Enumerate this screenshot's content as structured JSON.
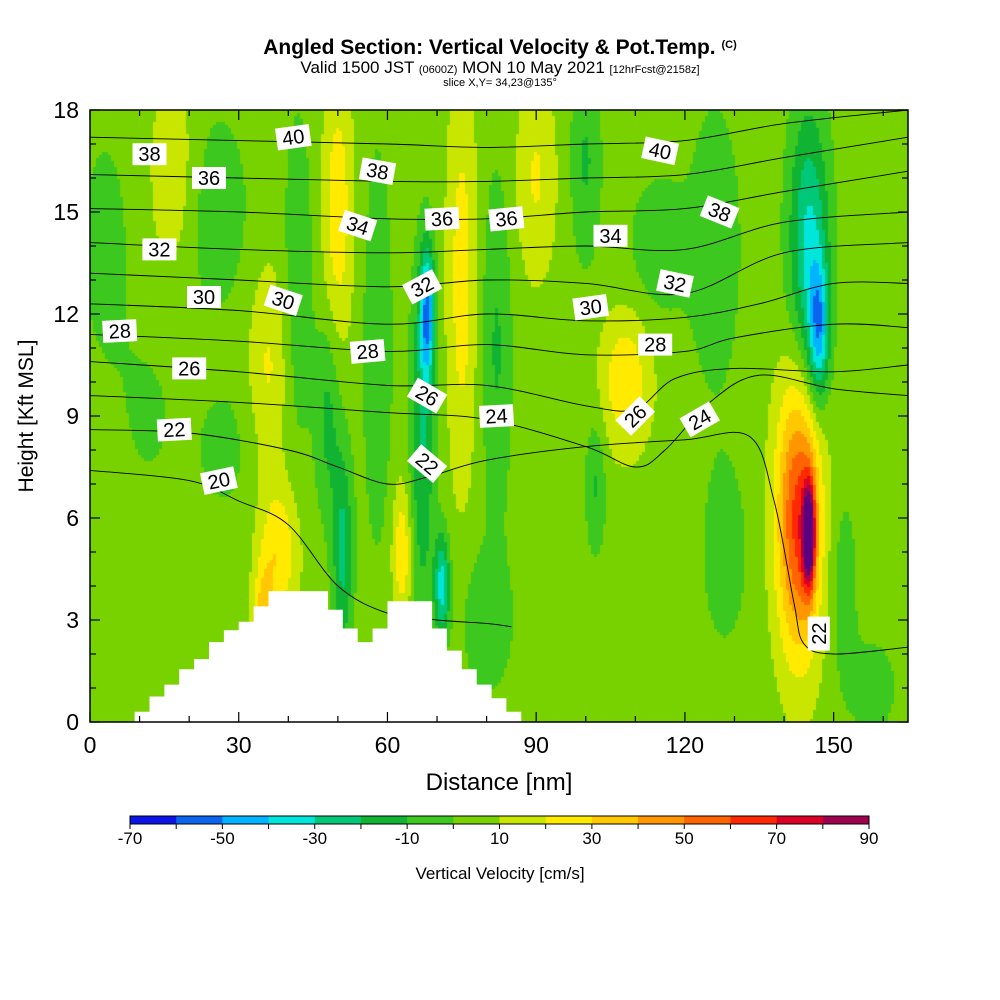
{
  "header": {
    "title": "Angled Section: Vertical Velocity & Pot.Temp.",
    "title_mark": "(C)",
    "subtitle_valid": "Valid 1500 JST",
    "subtitle_utc": "(0600Z)",
    "subtitle_date": "MON 10 May 2021",
    "subtitle_fcst": "[12hrFcst@2158z]",
    "slice": "slice X,Y= 34,23@135°"
  },
  "chart_data": {
    "type": "heatmap",
    "xlabel": "Distance [nm]",
    "ylabel": "Height [Kft MSL]",
    "xlim": [
      0,
      165
    ],
    "ylim": [
      0,
      18
    ],
    "xticks": [
      0,
      30,
      60,
      90,
      120,
      150
    ],
    "yticks": [
      0,
      3,
      6,
      9,
      12,
      15,
      18
    ],
    "colorbar": {
      "title": "Vertical Velocity [cm/s]",
      "bounds": [
        -70,
        -60,
        -50,
        -40,
        -30,
        -20,
        -10,
        0,
        10,
        20,
        30,
        40,
        50,
        60,
        70,
        80,
        90
      ],
      "labels": [
        -70,
        -50,
        -30,
        -10,
        10,
        30,
        50,
        70,
        90
      ],
      "colors": [
        "#0a14e6",
        "#0a64f0",
        "#00b4ff",
        "#00e6dc",
        "#00c878",
        "#10b432",
        "#3cc81e",
        "#78d200",
        "#c8e600",
        "#ffea00",
        "#ffc800",
        "#ff9600",
        "#ff6400",
        "#ff2800",
        "#dc0028",
        "#a00050",
        "#5a0080"
      ]
    },
    "background_velocity": 5,
    "velocity_features": [
      {
        "x": 3,
        "y": 14,
        "value": -8,
        "sx": 6,
        "sy": 4
      },
      {
        "x": 12,
        "y": 9,
        "value": -6,
        "sx": 7,
        "sy": 3
      },
      {
        "x": 17,
        "y": 16,
        "value": 14,
        "sx": 5,
        "sy": 3
      },
      {
        "x": 25,
        "y": 15,
        "value": -12,
        "sx": 7,
        "sy": 3
      },
      {
        "x": 27,
        "y": 8,
        "value": -8,
        "sx": 6,
        "sy": 2
      },
      {
        "x": 36,
        "y": 10.5,
        "value": 16,
        "sx": 4,
        "sy": 3
      },
      {
        "x": 38,
        "y": 5,
        "value": 24,
        "sx": 4,
        "sy": 2
      },
      {
        "x": 35,
        "y": 3,
        "value": 28,
        "sx": 2,
        "sy": 1.5
      },
      {
        "x": 42,
        "y": 13,
        "value": -13,
        "sx": 3,
        "sy": 5
      },
      {
        "x": 50,
        "y": 15,
        "value": 22,
        "sx": 3,
        "sy": 4
      },
      {
        "x": 51,
        "y": 5,
        "value": -28,
        "sx": 2,
        "sy": 3
      },
      {
        "x": 48,
        "y": 9,
        "value": -18,
        "sx": 2.5,
        "sy": 3
      },
      {
        "x": 58,
        "y": 11,
        "value": -13,
        "sx": 3,
        "sy": 6
      },
      {
        "x": 63,
        "y": 5,
        "value": 24,
        "sx": 2,
        "sy": 2
      },
      {
        "x": 68,
        "y": 12,
        "value": -50,
        "sx": 1.5,
        "sy": 2
      },
      {
        "x": 67,
        "y": 8,
        "value": -25,
        "sx": 2.5,
        "sy": 5
      },
      {
        "x": 71,
        "y": 4,
        "value": -40,
        "sx": 1.5,
        "sy": 1.5
      },
      {
        "x": 75,
        "y": 13,
        "value": 20,
        "sx": 3,
        "sy": 6
      },
      {
        "x": 82,
        "y": 11,
        "value": -16,
        "sx": 3,
        "sy": 5
      },
      {
        "x": 80,
        "y": 3,
        "value": -14,
        "sx": 5,
        "sy": 2
      },
      {
        "x": 90,
        "y": 16,
        "value": 16,
        "sx": 4,
        "sy": 3
      },
      {
        "x": 100,
        "y": 16.5,
        "value": -16,
        "sx": 3,
        "sy": 3
      },
      {
        "x": 102,
        "y": 7,
        "value": -16,
        "sx": 2,
        "sy": 2
      },
      {
        "x": 108,
        "y": 10,
        "value": 24,
        "sx": 5,
        "sy": 2
      },
      {
        "x": 115,
        "y": 14,
        "value": -13,
        "sx": 6,
        "sy": 2
      },
      {
        "x": 126,
        "y": 14,
        "value": -14,
        "sx": 5,
        "sy": 4
      },
      {
        "x": 128,
        "y": 5,
        "value": -10,
        "sx": 5,
        "sy": 3
      },
      {
        "x": 145,
        "y": 14,
        "value": -38,
        "sx": 4,
        "sy": 4
      },
      {
        "x": 147,
        "y": 11.5,
        "value": -42,
        "sx": 2,
        "sy": 2
      },
      {
        "x": 143,
        "y": 6,
        "value": 60,
        "sx": 4.5,
        "sy": 4
      },
      {
        "x": 145,
        "y": 5.5,
        "value": 80,
        "sx": 1.2,
        "sy": 1.5
      },
      {
        "x": 152,
        "y": 4,
        "value": -10,
        "sx": 3,
        "sy": 3
      },
      {
        "x": 158,
        "y": 1,
        "value": -10,
        "sx": 5,
        "sy": 1.5
      }
    ],
    "terrain": [
      [
        9,
        0.3
      ],
      [
        12,
        0.75
      ],
      [
        15,
        1.1
      ],
      [
        18,
        1.55
      ],
      [
        21,
        1.85
      ],
      [
        24,
        2.35
      ],
      [
        27,
        2.7
      ],
      [
        30,
        2.95
      ],
      [
        33,
        3.4
      ],
      [
        36,
        3.85
      ],
      [
        46,
        3.85
      ],
      [
        48,
        3.3
      ],
      [
        51,
        2.75
      ],
      [
        54,
        2.35
      ],
      [
        57,
        2.75
      ],
      [
        60,
        3.55
      ],
      [
        66,
        3.55
      ],
      [
        69,
        2.75
      ],
      [
        72,
        2.1
      ],
      [
        75,
        1.55
      ],
      [
        78,
        1.1
      ],
      [
        81,
        0.7
      ],
      [
        84,
        0.3
      ],
      [
        87,
        0.3
      ]
    ],
    "theta_contours": [
      {
        "value": 20,
        "points": [
          [
            0,
            7.4
          ],
          [
            20,
            7.1
          ],
          [
            30,
            6.5
          ],
          [
            40,
            5.8
          ],
          [
            50,
            4
          ],
          [
            60,
            3.2
          ],
          [
            70,
            3.0
          ],
          [
            80,
            2.9
          ],
          [
            85,
            2.8
          ]
        ]
      },
      {
        "value": 22,
        "points": [
          [
            0,
            8.6
          ],
          [
            20,
            8.5
          ],
          [
            40,
            8.0
          ],
          [
            50,
            7.5
          ],
          [
            60,
            7.0
          ],
          [
            68,
            7.2
          ],
          [
            80,
            7.7
          ],
          [
            100,
            8.1
          ],
          [
            120,
            8.3
          ],
          [
            133,
            8.4
          ],
          [
            138,
            6.5
          ],
          [
            142,
            3.5
          ],
          [
            144,
            2.3
          ],
          [
            150,
            2.0
          ],
          [
            165,
            2.2
          ]
        ]
      },
      {
        "value": 24,
        "points": [
          [
            0,
            9.6
          ],
          [
            30,
            9.4
          ],
          [
            60,
            9.1
          ],
          [
            80,
            8.9
          ],
          [
            100,
            8.1
          ],
          [
            110,
            7.5
          ],
          [
            116,
            8
          ],
          [
            125,
            9.4
          ],
          [
            135,
            10.2
          ],
          [
            150,
            9.8
          ],
          [
            165,
            9.6
          ]
        ]
      },
      {
        "value": 26,
        "points": [
          [
            0,
            10.6
          ],
          [
            30,
            10.3
          ],
          [
            60,
            9.9
          ],
          [
            80,
            9.9
          ],
          [
            100,
            9.3
          ],
          [
            110,
            9.2
          ],
          [
            118,
            10.1
          ],
          [
            130,
            10.4
          ],
          [
            150,
            10.3
          ],
          [
            165,
            10.5
          ]
        ]
      },
      {
        "value": 28,
        "points": [
          [
            0,
            11.4
          ],
          [
            30,
            11.2
          ],
          [
            60,
            10.9
          ],
          [
            80,
            11.1
          ],
          [
            100,
            10.8
          ],
          [
            120,
            10.9
          ],
          [
            130,
            11.3
          ],
          [
            150,
            11.7
          ],
          [
            165,
            11.6
          ]
        ]
      },
      {
        "value": 30,
        "points": [
          [
            0,
            12.3
          ],
          [
            30,
            12.1
          ],
          [
            60,
            11.7
          ],
          [
            80,
            12.0
          ],
          [
            100,
            11.8
          ],
          [
            120,
            11.9
          ],
          [
            135,
            12.3
          ],
          [
            150,
            12.9
          ],
          [
            165,
            12.9
          ]
        ]
      },
      {
        "value": 32,
        "points": [
          [
            0,
            13.2
          ],
          [
            30,
            13.0
          ],
          [
            60,
            12.8
          ],
          [
            80,
            13.0
          ],
          [
            100,
            12.9
          ],
          [
            120,
            12.6
          ],
          [
            140,
            13.8
          ],
          [
            165,
            14.1
          ]
        ]
      },
      {
        "value": 34,
        "points": [
          [
            0,
            14.1
          ],
          [
            30,
            13.9
          ],
          [
            60,
            13.8
          ],
          [
            80,
            13.9
          ],
          [
            100,
            14.0
          ],
          [
            120,
            13.9
          ],
          [
            140,
            14.7
          ],
          [
            165,
            15.0
          ]
        ]
      },
      {
        "value": 36,
        "points": [
          [
            0,
            15.1
          ],
          [
            30,
            15.0
          ],
          [
            60,
            14.8
          ],
          [
            80,
            14.8
          ],
          [
            100,
            15.0
          ],
          [
            120,
            15.1
          ],
          [
            140,
            15.6
          ],
          [
            165,
            16.2
          ]
        ]
      },
      {
        "value": 38,
        "points": [
          [
            0,
            16.1
          ],
          [
            30,
            16.0
          ],
          [
            60,
            15.9
          ],
          [
            80,
            15.9
          ],
          [
            100,
            16.0
          ],
          [
            120,
            16.1
          ],
          [
            140,
            16.6
          ],
          [
            165,
            17.2
          ]
        ]
      },
      {
        "value": 40,
        "points": [
          [
            0,
            17.2
          ],
          [
            30,
            17.1
          ],
          [
            60,
            17.0
          ],
          [
            80,
            16.9
          ],
          [
            100,
            17.0
          ],
          [
            120,
            17.1
          ],
          [
            140,
            17.6
          ],
          [
            165,
            18.0
          ]
        ]
      }
    ],
    "contour_labels": [
      {
        "text": "38",
        "x": 12,
        "y": 16.7,
        "angle": 0
      },
      {
        "text": "36",
        "x": 24,
        "y": 16.0,
        "angle": 0
      },
      {
        "text": "40",
        "x": 41,
        "y": 17.2,
        "angle": -8
      },
      {
        "text": "38",
        "x": 58,
        "y": 16.2,
        "angle": 10
      },
      {
        "text": "40",
        "x": 115,
        "y": 16.8,
        "angle": 12
      },
      {
        "text": "38",
        "x": 127,
        "y": 15.0,
        "angle": 22
      },
      {
        "text": "32",
        "x": 14,
        "y": 13.9,
        "angle": 0
      },
      {
        "text": "34",
        "x": 54,
        "y": 14.6,
        "angle": 18
      },
      {
        "text": "36",
        "x": 71,
        "y": 14.8,
        "angle": -3
      },
      {
        "text": "36",
        "x": 84,
        "y": 14.8,
        "angle": -6
      },
      {
        "text": "34",
        "x": 105,
        "y": 14.3,
        "angle": 0
      },
      {
        "text": "32",
        "x": 118,
        "y": 12.9,
        "angle": 12
      },
      {
        "text": "30",
        "x": 23,
        "y": 12.5,
        "angle": 0
      },
      {
        "text": "30",
        "x": 39,
        "y": 12.4,
        "angle": 18
      },
      {
        "text": "32",
        "x": 67,
        "y": 12.8,
        "angle": -28
      },
      {
        "text": "30",
        "x": 101,
        "y": 12.2,
        "angle": -8
      },
      {
        "text": "28",
        "x": 6,
        "y": 11.5,
        "angle": -3
      },
      {
        "text": "28",
        "x": 56,
        "y": 10.9,
        "angle": -5
      },
      {
        "text": "28",
        "x": 114,
        "y": 11.1,
        "angle": 0
      },
      {
        "text": "26",
        "x": 20,
        "y": 10.4,
        "angle": 0
      },
      {
        "text": "26",
        "x": 68,
        "y": 9.6,
        "angle": 30
      },
      {
        "text": "26",
        "x": 110,
        "y": 9.0,
        "angle": -45
      },
      {
        "text": "24",
        "x": 82,
        "y": 9.0,
        "angle": -3
      },
      {
        "text": "24",
        "x": 123,
        "y": 8.9,
        "angle": -30
      },
      {
        "text": "22",
        "x": 17,
        "y": 8.6,
        "angle": -3
      },
      {
        "text": "22",
        "x": 68,
        "y": 7.6,
        "angle": 40
      },
      {
        "text": "20",
        "x": 26,
        "y": 7.1,
        "angle": -12
      },
      {
        "text": "22",
        "x": 147,
        "y": 2.6,
        "angle": -90
      }
    ]
  }
}
